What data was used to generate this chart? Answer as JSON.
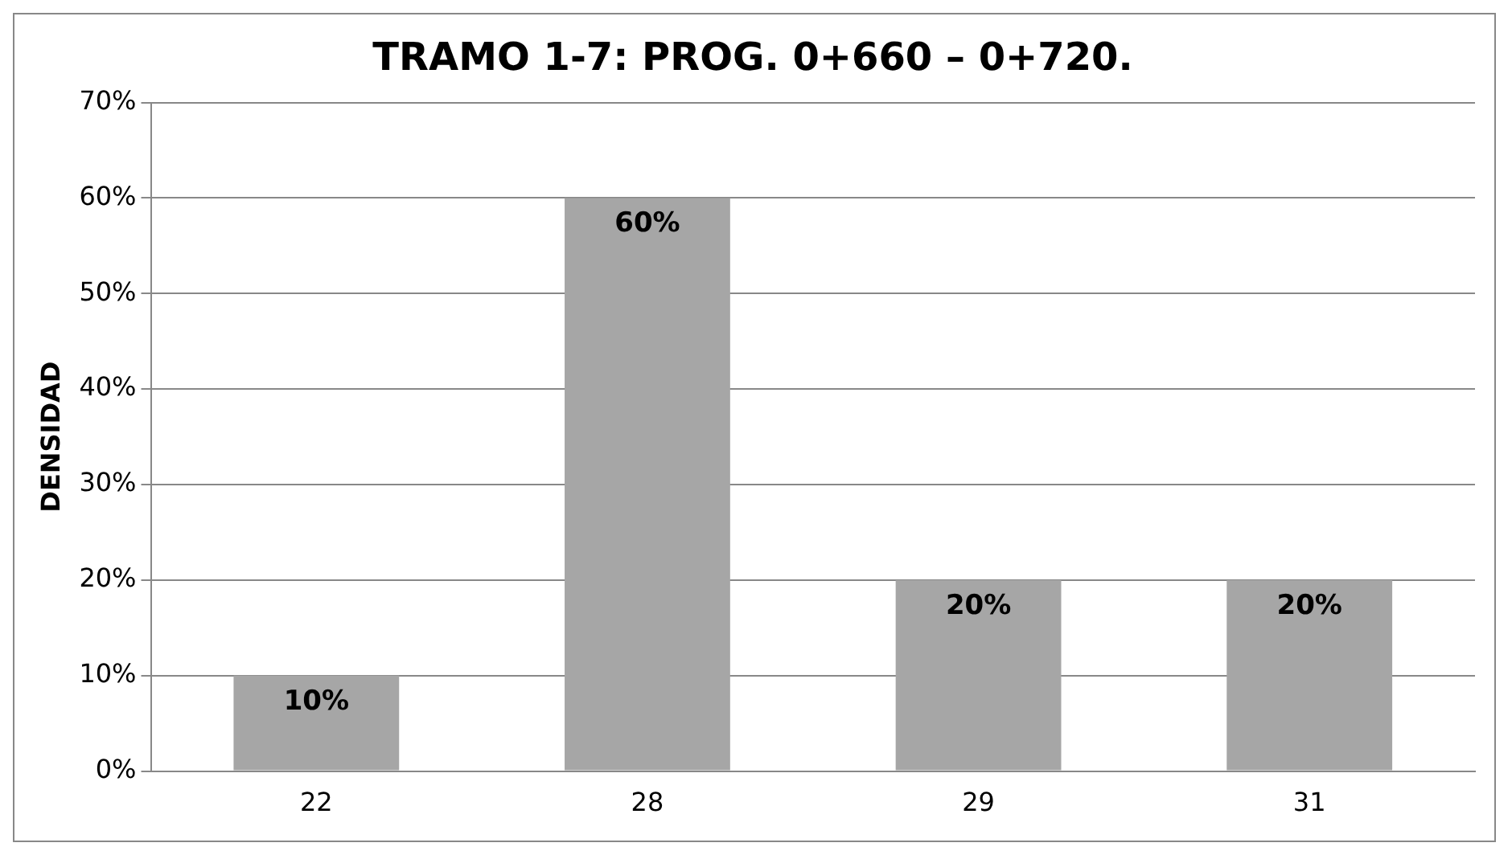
{
  "chart_data": {
    "type": "bar",
    "title": "TRAMO 1-7: PROG. 0+660 – 0+720.",
    "ylabel": "DENSIDAD",
    "categories": [
      "22",
      "28",
      "29",
      "31"
    ],
    "values": [
      10,
      60,
      20,
      20
    ],
    "color": "#a6a6a6",
    "value_labels": [
      "10%",
      "60%",
      "20%",
      "20%"
    ],
    "ylim": [
      0,
      70
    ],
    "yticks": [
      {
        "value": 0,
        "label": "0%"
      },
      {
        "value": 10,
        "label": "10%"
      },
      {
        "value": 20,
        "label": "20%"
      },
      {
        "value": 30,
        "label": "30%"
      },
      {
        "value": 40,
        "label": "40%"
      },
      {
        "value": 50,
        "label": "50%"
      },
      {
        "value": 60,
        "label": "60%"
      },
      {
        "value": 70,
        "label": "70%"
      }
    ],
    "grid": "y",
    "legend": false
  }
}
